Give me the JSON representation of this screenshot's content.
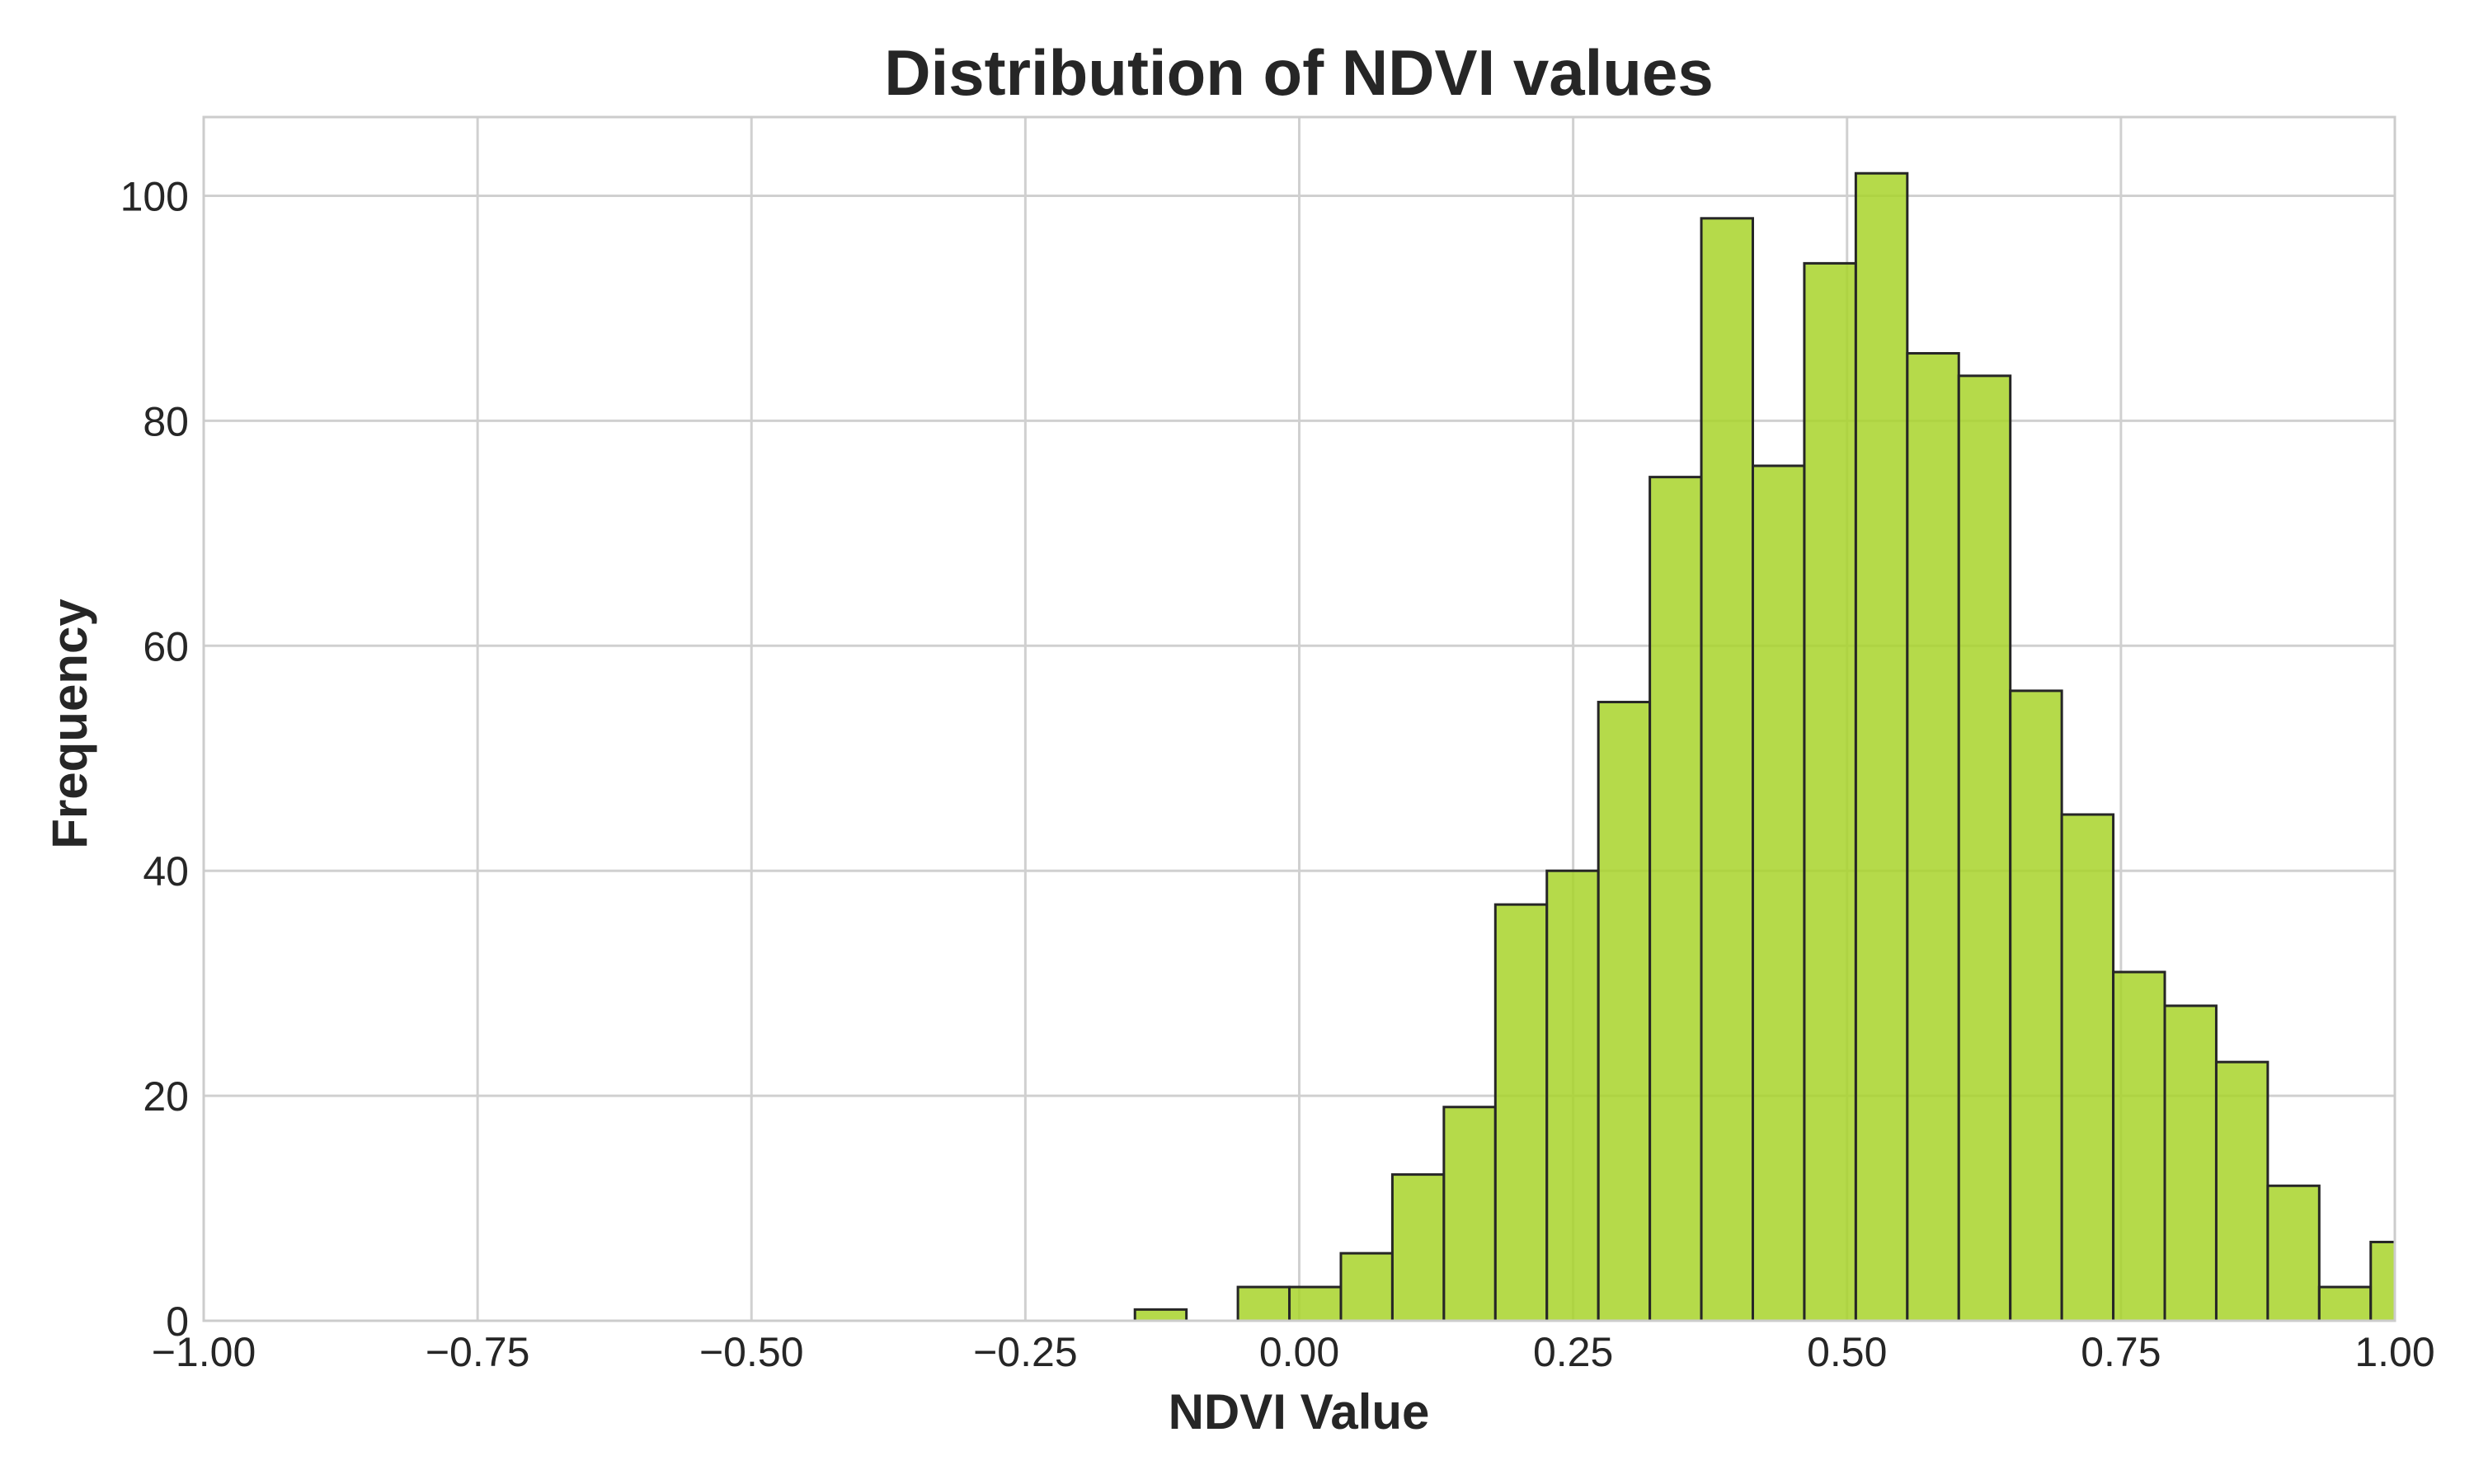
{
  "chart_data": {
    "type": "bar",
    "title": "Distribution of NDVI values",
    "xlabel": "NDVI Value",
    "ylabel": "Frequency",
    "xlim": [
      -1.0,
      1.0
    ],
    "ylim": [
      0,
      107
    ],
    "x_ticks": [
      -1.0,
      -0.75,
      -0.5,
      -0.25,
      0.0,
      0.25,
      0.5,
      0.75,
      1.0
    ],
    "x_tick_labels": [
      "−1.00",
      "−0.75",
      "−0.50",
      "−0.25",
      "0.00",
      "0.25",
      "0.50",
      "0.75",
      "1.00"
    ],
    "y_ticks": [
      0,
      20,
      40,
      60,
      80,
      100
    ],
    "y_tick_labels": [
      "0",
      "20",
      "40",
      "60",
      "80",
      "100"
    ],
    "grid": true,
    "bins": [
      {
        "x0": -0.15,
        "x1": -0.103,
        "count": 1
      },
      {
        "x0": -0.056,
        "x1": -0.009,
        "count": 3
      },
      {
        "x0": -0.009,
        "x1": 0.038,
        "count": 3
      },
      {
        "x0": 0.038,
        "x1": 0.085,
        "count": 6
      },
      {
        "x0": 0.085,
        "x1": 0.132,
        "count": 13
      },
      {
        "x0": 0.132,
        "x1": 0.179,
        "count": 19
      },
      {
        "x0": 0.179,
        "x1": 0.226,
        "count": 37
      },
      {
        "x0": 0.226,
        "x1": 0.273,
        "count": 40
      },
      {
        "x0": 0.273,
        "x1": 0.32,
        "count": 55
      },
      {
        "x0": 0.32,
        "x1": 0.367,
        "count": 75
      },
      {
        "x0": 0.367,
        "x1": 0.414,
        "count": 98
      },
      {
        "x0": 0.414,
        "x1": 0.461,
        "count": 76
      },
      {
        "x0": 0.461,
        "x1": 0.508,
        "count": 94
      },
      {
        "x0": 0.508,
        "x1": 0.555,
        "count": 102
      },
      {
        "x0": 0.555,
        "x1": 0.602,
        "count": 86
      },
      {
        "x0": 0.602,
        "x1": 0.649,
        "count": 84
      },
      {
        "x0": 0.649,
        "x1": 0.696,
        "count": 56
      },
      {
        "x0": 0.696,
        "x1": 0.743,
        "count": 45
      },
      {
        "x0": 0.743,
        "x1": 0.79,
        "count": 31
      },
      {
        "x0": 0.79,
        "x1": 0.837,
        "count": 28
      },
      {
        "x0": 0.837,
        "x1": 0.884,
        "count": 23
      },
      {
        "x0": 0.884,
        "x1": 0.931,
        "count": 12
      },
      {
        "x0": 0.931,
        "x1": 0.978,
        "count": 3
      },
      {
        "x0": 0.978,
        "x1": 1.025,
        "count": 7
      }
    ],
    "colors": {
      "bar_fill": "#a8d42a",
      "bar_edge": "#262626",
      "grid": "#d0d0d0",
      "frame": "#cccccc",
      "text": "#262626"
    }
  }
}
